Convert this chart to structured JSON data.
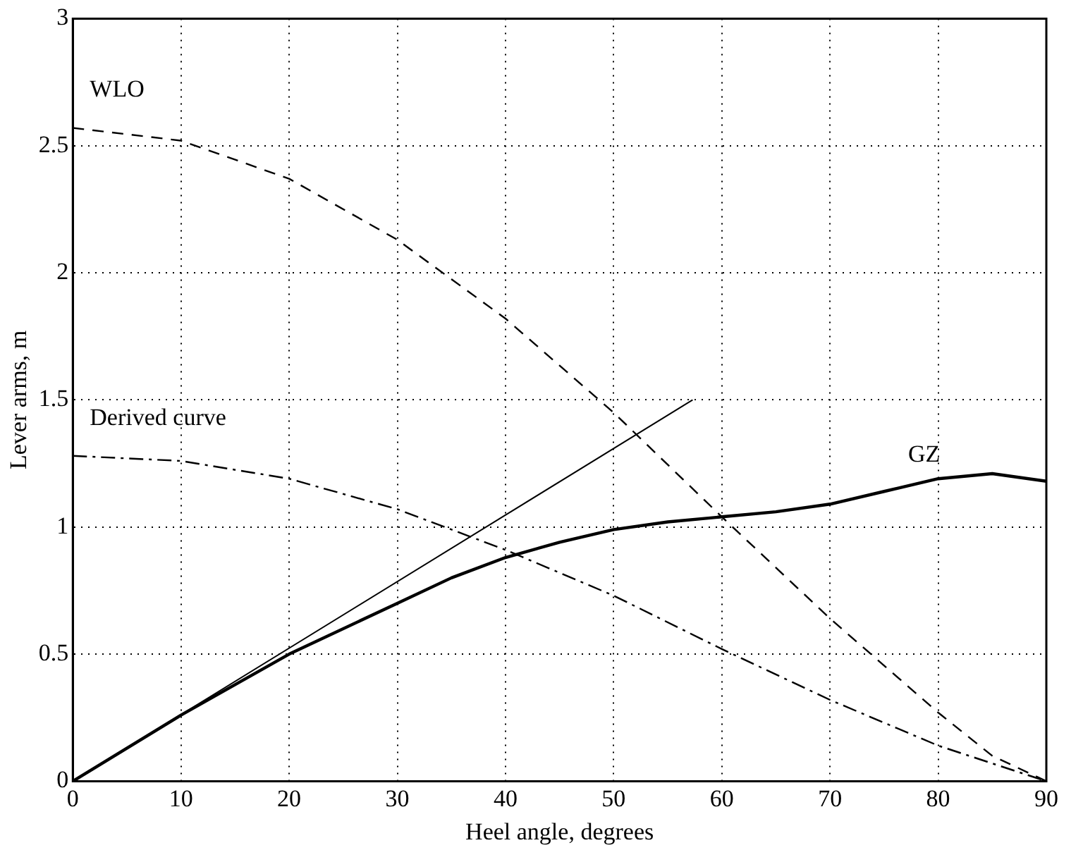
{
  "chart_data": {
    "type": "line",
    "xlabel": "Heel angle, degrees",
    "ylabel": "Lever arms, m",
    "xlim": [
      0,
      90
    ],
    "xticks": [
      0,
      10,
      20,
      30,
      40,
      50,
      60,
      70,
      80,
      90
    ],
    "ylim": [
      0,
      3
    ],
    "yticks": [
      0,
      0.5,
      1,
      1.5,
      2,
      2.5,
      3
    ],
    "grid": true,
    "legend": false,
    "marker": "none",
    "series": [
      {
        "name": "WLO",
        "color": "#000000",
        "line_style": "dashed",
        "x": [
          0,
          10,
          20,
          30,
          40,
          50,
          60,
          70,
          80,
          85,
          90
        ],
        "values": [
          2.57,
          2.52,
          2.37,
          2.13,
          1.82,
          1.45,
          1.04,
          0.64,
          0.27,
          0.1,
          0
        ]
      },
      {
        "name": "Derived curve",
        "color": "#000000",
        "line_style": "dashdot",
        "x": [
          0,
          10,
          20,
          30,
          40,
          50,
          60,
          70,
          80,
          90
        ],
        "values": [
          1.28,
          1.26,
          1.19,
          1.07,
          0.91,
          0.73,
          0.52,
          0.32,
          0.14,
          0
        ]
      },
      {
        "name": "GZ",
        "color": "#000000",
        "line_style": "solid",
        "x": [
          0,
          10,
          20,
          30,
          35,
          40,
          45,
          50,
          55,
          60,
          65,
          70,
          75,
          80,
          85,
          90
        ],
        "values": [
          0,
          0.26,
          0.5,
          0.7,
          0.8,
          0.88,
          0.94,
          0.99,
          1.02,
          1.04,
          1.06,
          1.09,
          1.14,
          1.19,
          1.21,
          1.18
        ]
      },
      {
        "color": "#000000",
        "line_style": "solid",
        "x": [
          0,
          57.3
        ],
        "values": [
          0,
          1.5
        ]
      }
    ]
  }
}
